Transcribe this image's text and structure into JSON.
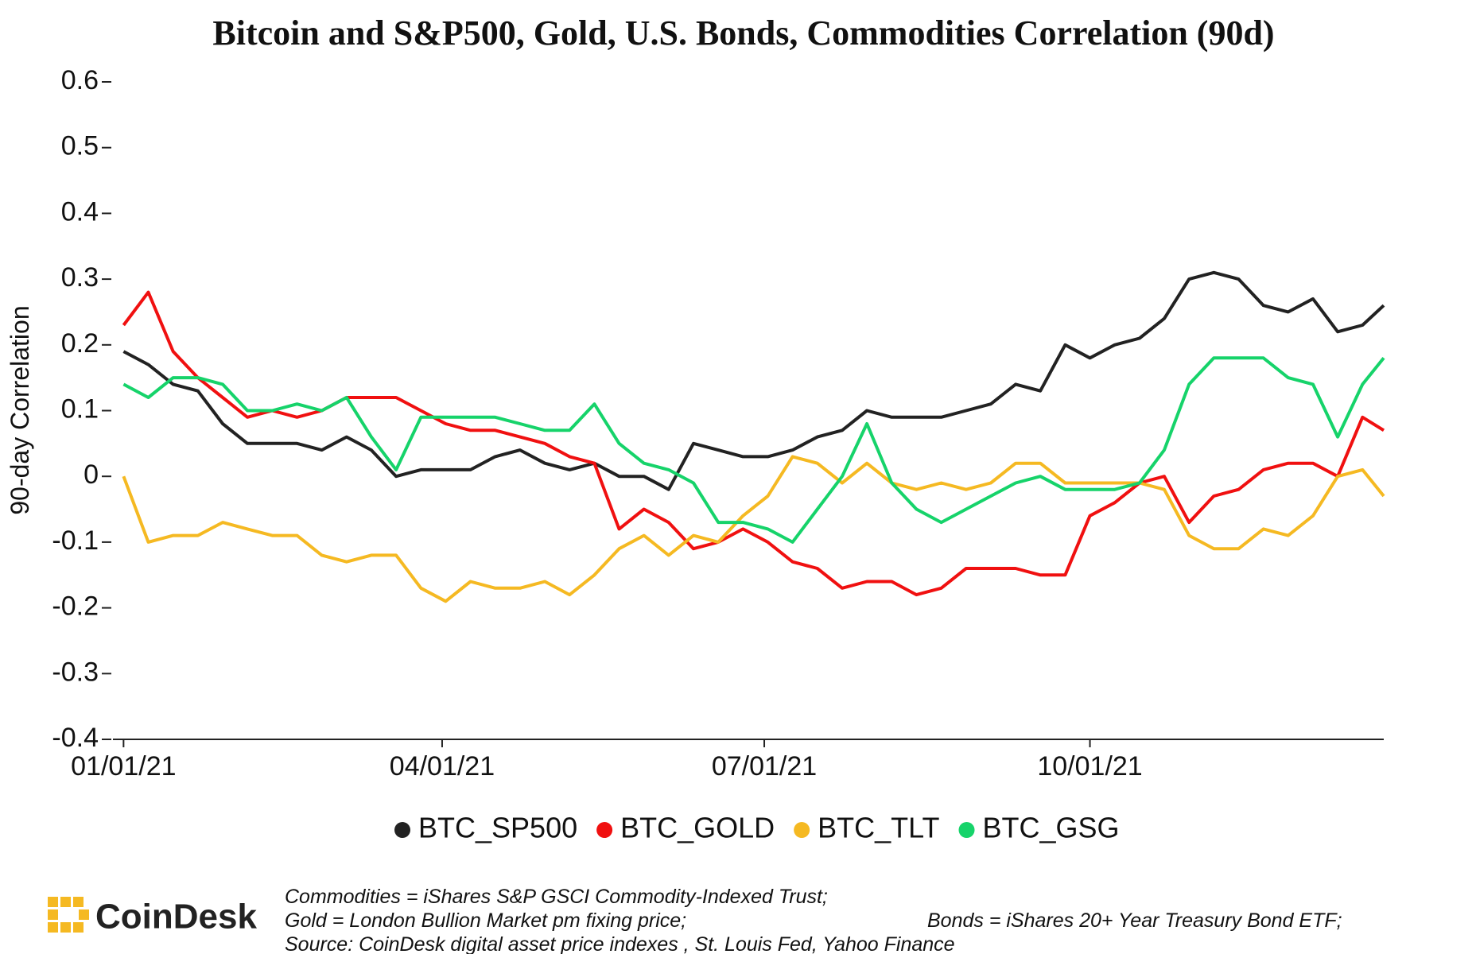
{
  "chart_data": {
    "type": "line",
    "title": "Bitcoin and S&P500, Gold, U.S. Bonds, Commodities Correlation (90d)",
    "y_label": "90-day Correlation",
    "x": [
      "2021-01-01",
      "2021-01-08",
      "2021-01-15",
      "2021-01-22",
      "2021-01-29",
      "2021-02-05",
      "2021-02-12",
      "2021-02-19",
      "2021-02-26",
      "2021-03-05",
      "2021-03-12",
      "2021-03-19",
      "2021-03-26",
      "2021-04-02",
      "2021-04-09",
      "2021-04-16",
      "2021-04-23",
      "2021-04-30",
      "2021-05-07",
      "2021-05-14",
      "2021-05-21",
      "2021-05-28",
      "2021-06-04",
      "2021-06-11",
      "2021-06-18",
      "2021-06-25",
      "2021-07-02",
      "2021-07-09",
      "2021-07-16",
      "2021-07-23",
      "2021-07-30",
      "2021-08-06",
      "2021-08-13",
      "2021-08-20",
      "2021-08-27",
      "2021-09-03",
      "2021-09-10",
      "2021-09-17",
      "2021-09-24",
      "2021-10-01",
      "2021-10-08",
      "2021-10-15",
      "2021-10-22",
      "2021-10-29",
      "2021-11-05",
      "2021-11-12",
      "2021-11-19",
      "2021-11-26",
      "2021-12-03",
      "2021-12-10",
      "2021-12-17",
      "2021-12-23"
    ],
    "series": [
      {
        "name": "BTC_SP500",
        "color": "#222222",
        "values": [
          0.19,
          0.17,
          0.14,
          0.13,
          0.08,
          0.05,
          0.05,
          0.05,
          0.04,
          0.06,
          0.04,
          0.0,
          0.01,
          0.01,
          0.01,
          0.03,
          0.04,
          0.02,
          0.01,
          0.02,
          0.0,
          0.0,
          -0.02,
          0.05,
          0.04,
          0.03,
          0.03,
          0.04,
          0.06,
          0.07,
          0.1,
          0.09,
          0.09,
          0.09,
          0.1,
          0.11,
          0.14,
          0.13,
          0.2,
          0.18,
          0.2,
          0.21,
          0.24,
          0.3,
          0.31,
          0.3,
          0.26,
          0.25,
          0.27,
          0.22,
          0.23,
          0.26
        ]
      },
      {
        "name": "BTC_GOLD",
        "color": "#f01010",
        "values": [
          0.23,
          0.28,
          0.19,
          0.15,
          0.12,
          0.09,
          0.1,
          0.09,
          0.1,
          0.12,
          0.12,
          0.12,
          0.1,
          0.08,
          0.07,
          0.07,
          0.06,
          0.05,
          0.03,
          0.02,
          -0.08,
          -0.05,
          -0.07,
          -0.11,
          -0.1,
          -0.08,
          -0.1,
          -0.13,
          -0.14,
          -0.17,
          -0.16,
          -0.16,
          -0.18,
          -0.17,
          -0.14,
          -0.14,
          -0.14,
          -0.15,
          -0.15,
          -0.06,
          -0.04,
          -0.01,
          0.0,
          -0.07,
          -0.03,
          -0.02,
          0.01,
          0.02,
          0.02,
          0.0,
          0.09,
          0.07
        ]
      },
      {
        "name": "BTC_TLT",
        "color": "#f5b922",
        "values": [
          0.0,
          -0.1,
          -0.09,
          -0.09,
          -0.07,
          -0.08,
          -0.09,
          -0.09,
          -0.12,
          -0.13,
          -0.12,
          -0.12,
          -0.17,
          -0.19,
          -0.16,
          -0.17,
          -0.17,
          -0.16,
          -0.18,
          -0.15,
          -0.11,
          -0.09,
          -0.12,
          -0.09,
          -0.1,
          -0.06,
          -0.03,
          0.03,
          0.02,
          -0.01,
          0.02,
          -0.01,
          -0.02,
          -0.01,
          -0.02,
          -0.01,
          0.02,
          0.02,
          -0.01,
          -0.01,
          -0.01,
          -0.01,
          -0.02,
          -0.09,
          -0.11,
          -0.11,
          -0.08,
          -0.09,
          -0.06,
          0.0,
          0.01,
          -0.03
        ]
      },
      {
        "name": "BTC_GSG",
        "color": "#16d36a",
        "values": [
          0.14,
          0.12,
          0.15,
          0.15,
          0.14,
          0.1,
          0.1,
          0.11,
          0.1,
          0.12,
          0.06,
          0.01,
          0.09,
          0.09,
          0.09,
          0.09,
          0.08,
          0.07,
          0.07,
          0.11,
          0.05,
          0.02,
          0.01,
          -0.01,
          -0.07,
          -0.07,
          -0.08,
          -0.1,
          -0.05,
          0.0,
          0.08,
          -0.01,
          -0.05,
          -0.07,
          -0.05,
          -0.03,
          -0.01,
          0.0,
          -0.02,
          -0.02,
          -0.02,
          -0.01,
          0.04,
          0.14,
          0.18,
          0.18,
          0.18,
          0.15,
          0.14,
          0.06,
          0.14,
          0.18
        ]
      }
    ],
    "xlim": [
      "2020-12-29",
      "2021-12-23"
    ],
    "xticks": [
      {
        "value": "2021-01-01",
        "label": "01/01/21"
      },
      {
        "value": "2021-04-01",
        "label": "04/01/21"
      },
      {
        "value": "2021-07-01",
        "label": "07/01/21"
      },
      {
        "value": "2021-10-01",
        "label": "10/01/21"
      }
    ],
    "ylim": [
      -0.4,
      0.6
    ],
    "yticks": [
      -0.4,
      -0.3,
      -0.2,
      -0.1,
      0,
      0.1,
      0.2,
      0.3,
      0.4,
      0.5,
      0.6
    ],
    "grid": false
  },
  "footer": {
    "brand": "CoinDesk",
    "notes": [
      "Commodities = iShares S&P GSCI Commodity-Indexed Trust;",
      "Gold = London Bullion Market pm fixing price;",
      "Bonds = iShares 20+ Year Treasury Bond ETF;",
      "Source: CoinDesk digital asset price indexes , St. Louis Fed, Yahoo Finance"
    ]
  }
}
